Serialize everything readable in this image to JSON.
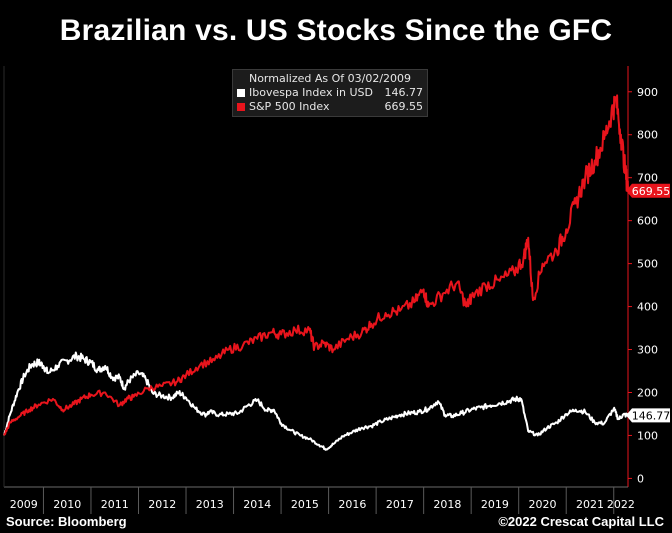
{
  "title": "Brazilian vs. US Stocks Since the GFC",
  "source_left": "Source: Bloomberg",
  "source_right": "©2022 Crescat Capital LLC",
  "legend": {
    "header": "Normalized As Of 03/02/2009",
    "items": [
      {
        "label": "Ibovespa Index in USD",
        "value": "146.77",
        "color": "#ffffff"
      },
      {
        "label": "S&P 500 Index",
        "value": "669.55",
        "color": "#e8141c"
      }
    ]
  },
  "chart_data": {
    "type": "line",
    "title": "Brazilian vs. US Stocks Since the GFC",
    "xlabel": "",
    "ylabel": "",
    "x_tick_labels": [
      "2009",
      "2010",
      "2011",
      "2012",
      "2013",
      "2014",
      "2015",
      "2016",
      "2017",
      "2018",
      "2019",
      "2020",
      "2021",
      "2022"
    ],
    "y_ticks": [
      0,
      100,
      200,
      300,
      400,
      500,
      600,
      700,
      800,
      900
    ],
    "ylim": [
      -20,
      960
    ],
    "xlim": [
      2009.17,
      2022.3
    ],
    "y_axis_side": "right",
    "grid": false,
    "legend_position": "top-center",
    "end_labels": [
      {
        "text": "669.55",
        "value": 669.55,
        "bg": "#e8141c",
        "fg": "#ffffff"
      },
      {
        "text": "146.77",
        "value": 146.77,
        "bg": "#ffffff",
        "fg": "#000000"
      }
    ],
    "series": [
      {
        "name": "Ibovespa Index in USD",
        "color": "#ffffff",
        "x": [
          2009.17,
          2009.3,
          2009.45,
          2009.6,
          2009.75,
          2009.9,
          2010.0,
          2010.1,
          2010.3,
          2010.5,
          2010.7,
          2010.85,
          2011.0,
          2011.15,
          2011.3,
          2011.45,
          2011.6,
          2011.7,
          2011.8,
          2012.0,
          2012.15,
          2012.3,
          2012.5,
          2012.7,
          2012.85,
          2013.0,
          2013.2,
          2013.4,
          2013.5,
          2013.7,
          2013.9,
          2014.1,
          2014.3,
          2014.5,
          2014.7,
          2014.85,
          2015.0,
          2015.2,
          2015.4,
          2015.6,
          2015.8,
          2015.95,
          2016.1,
          2016.3,
          2016.5,
          2016.7,
          2016.9,
          2017.1,
          2017.3,
          2017.5,
          2017.7,
          2017.9,
          2018.1,
          2018.3,
          2018.45,
          2018.6,
          2018.8,
          2019.0,
          2019.2,
          2019.4,
          2019.6,
          2019.8,
          2019.95,
          2020.05,
          2020.2,
          2020.4,
          2020.6,
          2020.8,
          2021.0,
          2021.2,
          2021.4,
          2021.6,
          2021.8,
          2022.0,
          2022.1,
          2022.2,
          2022.3
        ],
        "y": [
          100,
          150,
          200,
          240,
          265,
          270,
          262,
          245,
          262,
          275,
          285,
          278,
          270,
          252,
          262,
          235,
          235,
          210,
          228,
          245,
          232,
          198,
          192,
          188,
          200,
          188,
          162,
          148,
          155,
          148,
          150,
          152,
          170,
          182,
          158,
          160,
          128,
          112,
          100,
          92,
          78,
          68,
          80,
          98,
          108,
          118,
          122,
          132,
          140,
          148,
          152,
          155,
          162,
          180,
          148,
          145,
          152,
          160,
          165,
          170,
          175,
          180,
          185,
          185,
          110,
          100,
          118,
          130,
          150,
          160,
          155,
          130,
          128,
          162,
          138,
          148,
          147
        ]
      },
      {
        "name": "S&P 500 Index",
        "color": "#e8141c",
        "x": [
          2009.17,
          2009.3,
          2009.5,
          2009.7,
          2009.9,
          2010.2,
          2010.4,
          2010.6,
          2010.8,
          2011.0,
          2011.3,
          2011.6,
          2011.75,
          2011.9,
          2012.2,
          2012.5,
          2012.8,
          2013.0,
          2013.3,
          2013.6,
          2013.9,
          2014.2,
          2014.5,
          2014.8,
          2015.0,
          2015.3,
          2015.6,
          2015.7,
          2015.9,
          2016.1,
          2016.4,
          2016.7,
          2016.9,
          2017.2,
          2017.5,
          2017.8,
          2018.0,
          2018.1,
          2018.4,
          2018.7,
          2018.9,
          2019.0,
          2019.3,
          2019.6,
          2019.9,
          2020.1,
          2020.2,
          2020.3,
          2020.5,
          2020.8,
          2021.0,
          2021.2,
          2021.4,
          2021.6,
          2021.8,
          2021.95,
          2022.05,
          2022.15,
          2022.25,
          2022.3
        ],
        "y": [
          100,
          130,
          145,
          160,
          172,
          185,
          160,
          170,
          185,
          195,
          200,
          170,
          185,
          190,
          210,
          215,
          225,
          240,
          265,
          275,
          300,
          310,
          325,
          340,
          335,
          345,
          345,
          305,
          315,
          300,
          325,
          340,
          360,
          385,
          390,
          410,
          440,
          400,
          430,
          455,
          400,
          420,
          450,
          460,
          480,
          510,
          560,
          415,
          500,
          530,
          580,
          640,
          700,
          740,
          790,
          850,
          880,
          800,
          710,
          670
        ]
      }
    ]
  }
}
